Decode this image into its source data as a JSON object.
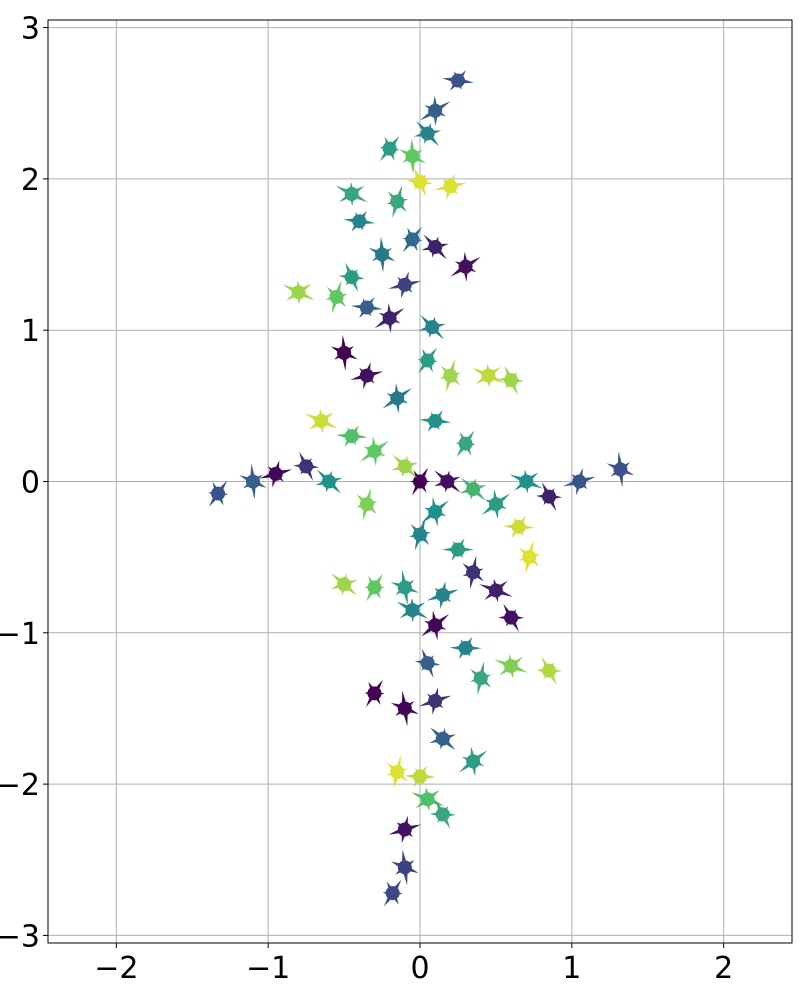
{
  "chart_data": {
    "type": "scatter",
    "title": "",
    "xlabel": "",
    "ylabel": "",
    "xlim": [
      -2.45,
      2.45
    ],
    "ylim": [
      -3.05,
      3.05
    ],
    "xticks": [
      -2,
      -1,
      0,
      1,
      2
    ],
    "yticks": [
      -3,
      -2,
      -1,
      0,
      1,
      2,
      3
    ],
    "xtick_labels": [
      "−2",
      "−1",
      "0",
      "1",
      "2"
    ],
    "ytick_labels": [
      "−3",
      "−2",
      "−1",
      "0",
      "1",
      "2",
      "3"
    ],
    "grid": true,
    "colormap": "viridis",
    "colormap_stops": [
      "#440154",
      "#3b528b",
      "#21918c",
      "#5ec962",
      "#fde725"
    ],
    "description_of_data": "",
    "series": [
      {
        "values": [
          {
            "x": 0.0,
            "y": 0.0,
            "c": 0.0
          },
          {
            "x": 0.18,
            "y": 0.0,
            "c": 0.05
          },
          {
            "x": 0.1,
            "y": -0.2,
            "c": 0.5
          },
          {
            "x": 0.25,
            "y": -0.45,
            "c": 0.55
          },
          {
            "x": 0.35,
            "y": -0.6,
            "c": 0.15
          },
          {
            "x": 0.5,
            "y": -0.72,
            "c": 0.1
          },
          {
            "x": 0.6,
            "y": -0.9,
            "c": 0.05
          },
          {
            "x": 0.15,
            "y": -0.75,
            "c": 0.45
          },
          {
            "x": -0.1,
            "y": -0.7,
            "c": 0.55
          },
          {
            "x": -0.3,
            "y": -0.7,
            "c": 0.75
          },
          {
            "x": -0.5,
            "y": -0.68,
            "c": 0.85
          },
          {
            "x": 0.1,
            "y": -0.95,
            "c": 0.02
          },
          {
            "x": 0.3,
            "y": -1.1,
            "c": 0.45
          },
          {
            "x": 0.4,
            "y": -1.3,
            "c": 0.6
          },
          {
            "x": 0.6,
            "y": -1.22,
            "c": 0.8
          },
          {
            "x": 0.85,
            "y": -1.25,
            "c": 0.88
          },
          {
            "x": 0.1,
            "y": -1.45,
            "c": 0.15
          },
          {
            "x": -0.1,
            "y": -1.5,
            "c": 0.02
          },
          {
            "x": -0.3,
            "y": -1.4,
            "c": 0.0
          },
          {
            "x": 0.15,
            "y": -1.7,
            "c": 0.3
          },
          {
            "x": 0.35,
            "y": -1.85,
            "c": 0.55
          },
          {
            "x": 0.0,
            "y": -1.95,
            "c": 0.9
          },
          {
            "x": -0.15,
            "y": -1.92,
            "c": 0.95
          },
          {
            "x": 0.05,
            "y": -2.1,
            "c": 0.7
          },
          {
            "x": 0.15,
            "y": -2.2,
            "c": 0.6
          },
          {
            "x": -0.1,
            "y": -2.3,
            "c": 0.05
          },
          {
            "x": -0.1,
            "y": -2.55,
            "c": 0.2
          },
          {
            "x": -0.18,
            "y": -2.72,
            "c": 0.22
          },
          {
            "x": 0.35,
            "y": -0.05,
            "c": 0.65
          },
          {
            "x": 0.5,
            "y": -0.15,
            "c": 0.55
          },
          {
            "x": 0.65,
            "y": -0.3,
            "c": 0.92
          },
          {
            "x": 0.72,
            "y": -0.5,
            "c": 0.95
          },
          {
            "x": 0.7,
            "y": 0.0,
            "c": 0.5
          },
          {
            "x": 0.85,
            "y": -0.1,
            "c": 0.1
          },
          {
            "x": 1.05,
            "y": 0.0,
            "c": 0.25
          },
          {
            "x": 1.32,
            "y": 0.08,
            "c": 0.25
          },
          {
            "x": 0.3,
            "y": 0.25,
            "c": 0.6
          },
          {
            "x": -0.1,
            "y": 0.1,
            "c": 0.85
          },
          {
            "x": -0.3,
            "y": 0.2,
            "c": 0.75
          },
          {
            "x": -0.45,
            "y": 0.3,
            "c": 0.7
          },
          {
            "x": -0.35,
            "y": -0.15,
            "c": 0.8
          },
          {
            "x": -0.65,
            "y": 0.4,
            "c": 0.92
          },
          {
            "x": -0.75,
            "y": 0.1,
            "c": 0.15
          },
          {
            "x": -0.95,
            "y": 0.05,
            "c": 0.02
          },
          {
            "x": -1.1,
            "y": 0.0,
            "c": 0.3
          },
          {
            "x": -1.33,
            "y": -0.08,
            "c": 0.25
          },
          {
            "x": -0.6,
            "y": 0.0,
            "c": 0.5
          },
          {
            "x": -0.15,
            "y": 0.55,
            "c": 0.4
          },
          {
            "x": 0.1,
            "y": 0.4,
            "c": 0.5
          },
          {
            "x": 0.2,
            "y": 0.7,
            "c": 0.85
          },
          {
            "x": 0.45,
            "y": 0.7,
            "c": 0.9
          },
          {
            "x": 0.6,
            "y": 0.67,
            "c": 0.85
          },
          {
            "x": -0.35,
            "y": 0.7,
            "c": 0.05
          },
          {
            "x": -0.5,
            "y": 0.85,
            "c": 0.0
          },
          {
            "x": 0.05,
            "y": 0.8,
            "c": 0.55
          },
          {
            "x": 0.08,
            "y": 1.02,
            "c": 0.45
          },
          {
            "x": -0.2,
            "y": 1.08,
            "c": 0.1
          },
          {
            "x": -0.35,
            "y": 1.15,
            "c": 0.3
          },
          {
            "x": -0.55,
            "y": 1.22,
            "c": 0.75
          },
          {
            "x": -0.8,
            "y": 1.25,
            "c": 0.85
          },
          {
            "x": -0.45,
            "y": 1.35,
            "c": 0.55
          },
          {
            "x": -0.1,
            "y": 1.3,
            "c": 0.2
          },
          {
            "x": -0.25,
            "y": 1.5,
            "c": 0.4
          },
          {
            "x": -0.05,
            "y": 1.6,
            "c": 0.35
          },
          {
            "x": 0.1,
            "y": 1.55,
            "c": 0.1
          },
          {
            "x": 0.3,
            "y": 1.42,
            "c": 0.05
          },
          {
            "x": -0.4,
            "y": 1.72,
            "c": 0.45
          },
          {
            "x": -0.15,
            "y": 1.85,
            "c": 0.6
          },
          {
            "x": -0.45,
            "y": 1.9,
            "c": 0.6
          },
          {
            "x": 0.0,
            "y": 1.98,
            "c": 0.95
          },
          {
            "x": 0.2,
            "y": 1.95,
            "c": 0.95
          },
          {
            "x": -0.05,
            "y": 2.15,
            "c": 0.75
          },
          {
            "x": -0.2,
            "y": 2.2,
            "c": 0.55
          },
          {
            "x": 0.05,
            "y": 2.3,
            "c": 0.45
          },
          {
            "x": 0.1,
            "y": 2.45,
            "c": 0.3
          },
          {
            "x": 0.25,
            "y": 2.65,
            "c": 0.25
          },
          {
            "x": 0.0,
            "y": -0.35,
            "c": 0.45
          },
          {
            "x": -0.05,
            "y": -0.85,
            "c": 0.45
          },
          {
            "x": 0.05,
            "y": -1.2,
            "c": 0.3
          }
        ]
      }
    ]
  }
}
